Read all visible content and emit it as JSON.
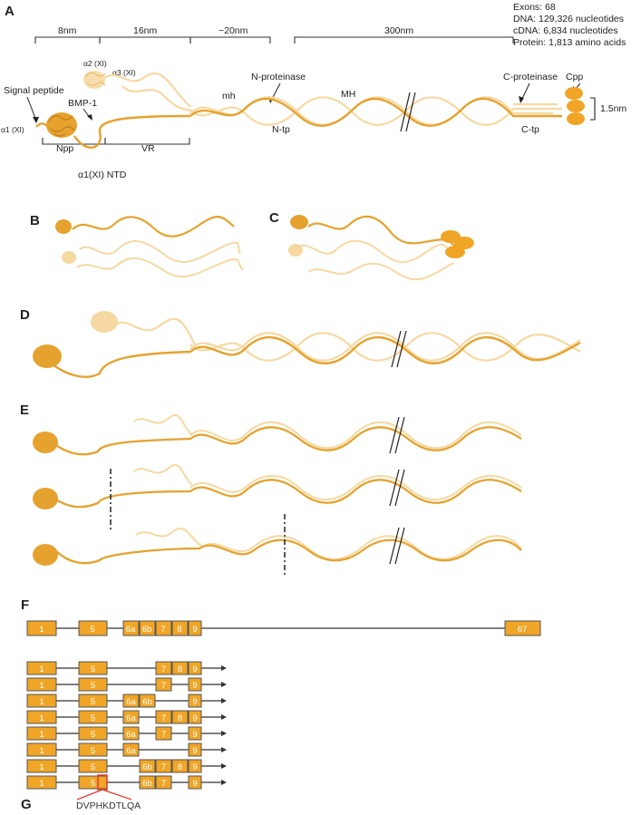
{
  "colors": {
    "dark_chain": "#E6A22E",
    "light_chain": "#F6D9A2",
    "exon_fill": "#F0A526",
    "exon_stroke": "#555555",
    "line": "#333333",
    "mutation": "#E53935"
  },
  "panels": {
    "a": "A",
    "b": "B",
    "c": "C",
    "d": "D",
    "e": "E",
    "f": "F",
    "g": "G"
  },
  "stats": {
    "exons": "Exons: 68",
    "dna": "DNA: 129,326 nucleotides",
    "cdna": "cDNA: 6,834 nucleotides",
    "protein": "Protein: 1,813 amino acids"
  },
  "dimensions": {
    "d8": "8nm",
    "d16": "16nm",
    "d20": "~20nm",
    "d300": "300nm",
    "d15": "1.5nm"
  },
  "labels": {
    "signal_peptide": "Signal peptide",
    "a1": "α1 (XI)",
    "a2": "α2 (XI)",
    "a3": "α3 (XI)",
    "bmp1": "BMP-1",
    "npp": "Npp",
    "vr": "VR",
    "ntd": "α1(XI) NTD",
    "mh": "mh",
    "n_proteinase": "N-proteinase",
    "n_tp": "N-tp",
    "mh_major": "MH",
    "c_proteinase": "C-proteinase",
    "c_tp": "C-tp",
    "cpp": "Cpp"
  },
  "gene_structure": {
    "main": [
      "1",
      "5",
      "6a",
      "6b",
      "7",
      "8",
      "9",
      "67"
    ],
    "isoforms": [
      [
        "1",
        "5",
        "7",
        "8",
        "9"
      ],
      [
        "1",
        "5",
        "7",
        "9"
      ],
      [
        "1",
        "5",
        "6a",
        "6b",
        "9"
      ],
      [
        "1",
        "5",
        "6a",
        "7",
        "8",
        "9"
      ],
      [
        "1",
        "5",
        "6a",
        "7",
        "9"
      ],
      [
        "1",
        "5",
        "6a",
        "9"
      ],
      [
        "1",
        "5",
        "6b",
        "7",
        "8",
        "9"
      ],
      [
        "1",
        "5",
        "6b",
        "7",
        "9"
      ]
    ]
  },
  "mutation_sequence": "DVPHKDTLQA"
}
